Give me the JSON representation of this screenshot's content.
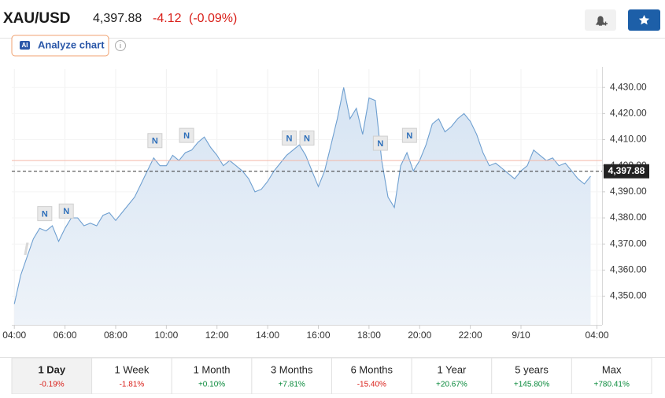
{
  "header": {
    "symbol": "XAU/USD",
    "price": {
      "value": 4397.88,
      "label": "4,397.88"
    },
    "change": "-4.12",
    "change_pct": "(-0.09%)",
    "analyze_button": "Analyze chart",
    "ai_badge": "AI"
  },
  "chart_data": {
    "type": "area",
    "watermark": "Investing.com",
    "x": [
      4,
      4.25,
      4.5,
      4.75,
      5,
      5.25,
      5.5,
      5.75,
      6,
      6.25,
      6.5,
      6.75,
      7,
      7.25,
      7.5,
      7.75,
      8,
      8.25,
      8.5,
      8.75,
      9,
      9.25,
      9.5,
      9.75,
      10,
      10.25,
      10.5,
      10.75,
      11,
      11.25,
      11.5,
      11.75,
      12,
      12.25,
      12.5,
      12.75,
      13,
      13.25,
      13.5,
      13.75,
      14,
      14.25,
      14.5,
      14.75,
      15,
      15.25,
      15.5,
      15.75,
      16,
      16.25,
      16.5,
      16.75,
      17,
      17.25,
      17.5,
      17.75,
      18,
      18.25,
      18.5,
      18.75,
      19,
      19.25,
      19.5,
      19.75,
      20,
      20.25,
      20.5,
      20.75,
      21,
      21.25,
      21.5,
      21.75,
      22,
      22.25,
      22.5,
      22.75,
      23,
      23.25,
      23.5,
      23.75,
      24,
      24.25,
      24.5,
      24.75,
      25,
      25.25,
      25.5,
      25.75,
      26,
      26.25,
      26.5,
      26.75
    ],
    "series": [
      {
        "color": "#6e9fd0",
        "values": [
          4347,
          4358,
          4365,
          4372,
          4376,
          4375,
          4377,
          4371,
          4376,
          4380,
          4380,
          4377,
          4378,
          4377,
          4381,
          4382,
          4379,
          4382,
          4385,
          4388,
          4393,
          4398,
          4403,
          4400,
          4400,
          4404,
          4402,
          4405,
          4406,
          4409,
          4411,
          4407,
          4404,
          4400,
          4402,
          4400,
          4398,
          4395,
          4390,
          4391,
          4394,
          4398,
          4401,
          4404,
          4406,
          4408,
          4404,
          4398,
          4392,
          4398,
          4408,
          4418,
          4430,
          4418,
          4422,
          4412,
          4426,
          4425,
          4402,
          4388,
          4384,
          4400,
          4405,
          4398,
          4402,
          4408,
          4416,
          4418,
          4413,
          4415,
          4418,
          4420,
          4417,
          4412,
          4405,
          4400,
          4401,
          4399,
          4397,
          4395,
          4398,
          4400,
          4406,
          4404,
          4402,
          4403,
          4400,
          4401,
          4398,
          4395,
          4393,
          4396
        ]
      }
    ],
    "reference_line": 4402,
    "reference_color": "#f4b8a8",
    "news_markers": [
      {
        "label": "N",
        "x": 5.2
      },
      {
        "label": "N",
        "x": 6.05
      },
      {
        "label": "N",
        "x": 9.55
      },
      {
        "label": "N",
        "x": 10.8
      },
      {
        "label": "N",
        "x": 14.85
      },
      {
        "label": "N",
        "x": 15.55
      },
      {
        "label": "N",
        "x": 18.45
      },
      {
        "label": "N",
        "x": 19.6
      }
    ],
    "xlim": [
      3.9,
      27.2
    ],
    "ylim": [
      4339,
      4437
    ],
    "xticks": [
      {
        "value": 4,
        "label": "04:00"
      },
      {
        "value": 6,
        "label": "06:00"
      },
      {
        "value": 8,
        "label": "08:00"
      },
      {
        "value": 10,
        "label": "10:00"
      },
      {
        "value": 12,
        "label": "12:00"
      },
      {
        "value": 14,
        "label": "14:00"
      },
      {
        "value": 16,
        "label": "16:00"
      },
      {
        "value": 18,
        "label": "18:00"
      },
      {
        "value": 20,
        "label": "20:00"
      },
      {
        "value": 22,
        "label": "22:00"
      },
      {
        "value": 24,
        "label": "9/10"
      },
      {
        "value": 27,
        "label": "04:00"
      }
    ],
    "yticks": [
      {
        "value": 4350,
        "label": "4,350.00"
      },
      {
        "value": 4360,
        "label": "4,360.00"
      },
      {
        "value": 4370,
        "label": "4,370.00"
      },
      {
        "value": 4380,
        "label": "4,380.00"
      },
      {
        "value": 4390,
        "label": "4,390.00"
      },
      {
        "value": 4400,
        "label": "4,400.00"
      },
      {
        "value": 4410,
        "label": "4,410.00"
      },
      {
        "value": 4420,
        "label": "4,420.00"
      },
      {
        "value": 4430,
        "label": "4,430.00"
      }
    ],
    "grid": true
  },
  "periods": [
    {
      "label": "1 Day",
      "change": "-0.19%"
    },
    {
      "label": "1 Week",
      "change": "-1.81%"
    },
    {
      "label": "1 Month",
      "change": "+0.10%"
    },
    {
      "label": "3 Months",
      "change": "+7.81%"
    },
    {
      "label": "6 Months",
      "change": "-15.40%"
    },
    {
      "label": "1 Year",
      "change": "+20.67%"
    },
    {
      "label": "5 years",
      "change": "+145.80%"
    },
    {
      "label": "Max",
      "change": "+780.41%"
    }
  ]
}
